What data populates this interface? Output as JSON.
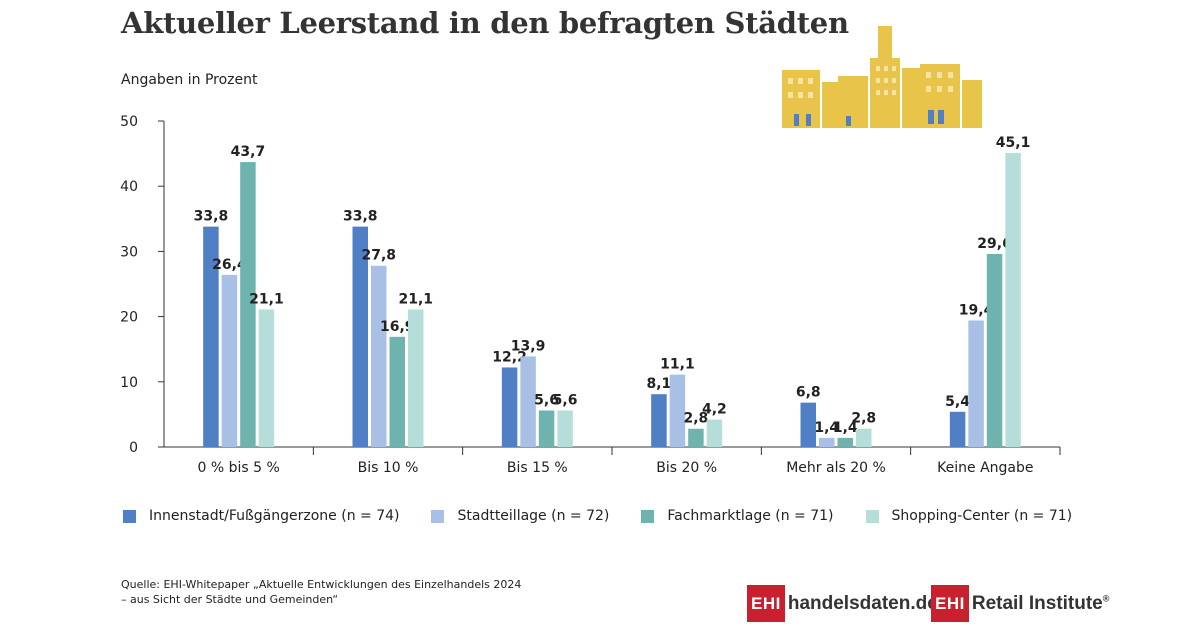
{
  "title": "Aktueller Leerstand in den befragten Städten",
  "subtitle": "Angaben in Prozent",
  "chart_data": {
    "type": "bar",
    "categories": [
      "0 % bis 5 %",
      "Bis 10 %",
      "Bis 15 %",
      "Bis 20 %",
      "Mehr als 20 %",
      "Keine Angabe"
    ],
    "series": [
      {
        "name": "Innenstadt/Fußgängerzone (n = 74)",
        "color": "#4f7fc4",
        "values": [
          33.8,
          33.8,
          12.2,
          8.1,
          6.8,
          5.4
        ],
        "labels": [
          "33,8",
          "33,8",
          "12,2",
          "8,1",
          "6,8",
          "5,4"
        ]
      },
      {
        "name": "Stadtteillage (n = 72)",
        "color": "#a9c0e6",
        "values": [
          26.4,
          27.8,
          13.9,
          11.1,
          1.4,
          19.4
        ],
        "labels": [
          "26,4",
          "27,8",
          "13,9",
          "11,1",
          "1,4",
          "19,4"
        ]
      },
      {
        "name": "Fachmarktlage (n = 71)",
        "color": "#6fb3ae",
        "values": [
          43.7,
          16.9,
          5.6,
          2.8,
          1.4,
          29.6
        ],
        "labels": [
          "43,7",
          "16,9",
          "5,6",
          "2,8",
          "1,4",
          "29,6"
        ]
      },
      {
        "name": "Shopping-Center (n = 71)",
        "color": "#b5dedb",
        "values": [
          21.1,
          21.1,
          5.6,
          4.2,
          2.8,
          45.1
        ],
        "labels": [
          "21,1",
          "21,1",
          "5,6",
          "4,2",
          "2,8",
          "45,1"
        ]
      }
    ],
    "ylim": [
      0,
      50
    ],
    "yticks": [
      "0",
      "10",
      "20",
      "30",
      "40",
      "50"
    ],
    "legend_position": "bottom",
    "grid": false
  },
  "source": {
    "line1": "Quelle: EHI-Whitepaper „Aktuelle Entwicklungen des Einzelhandels 2024",
    "line2": "– aus Sicht der Städte und Gemeinden“"
  },
  "logos": [
    {
      "box": "EHI",
      "text": "handelsdaten.de"
    },
    {
      "box": "EHI",
      "text": "Retail Institute",
      "mark": "®"
    }
  ],
  "decoration": {
    "icon": "city-skyline-icon",
    "color": "#e8c54a"
  }
}
